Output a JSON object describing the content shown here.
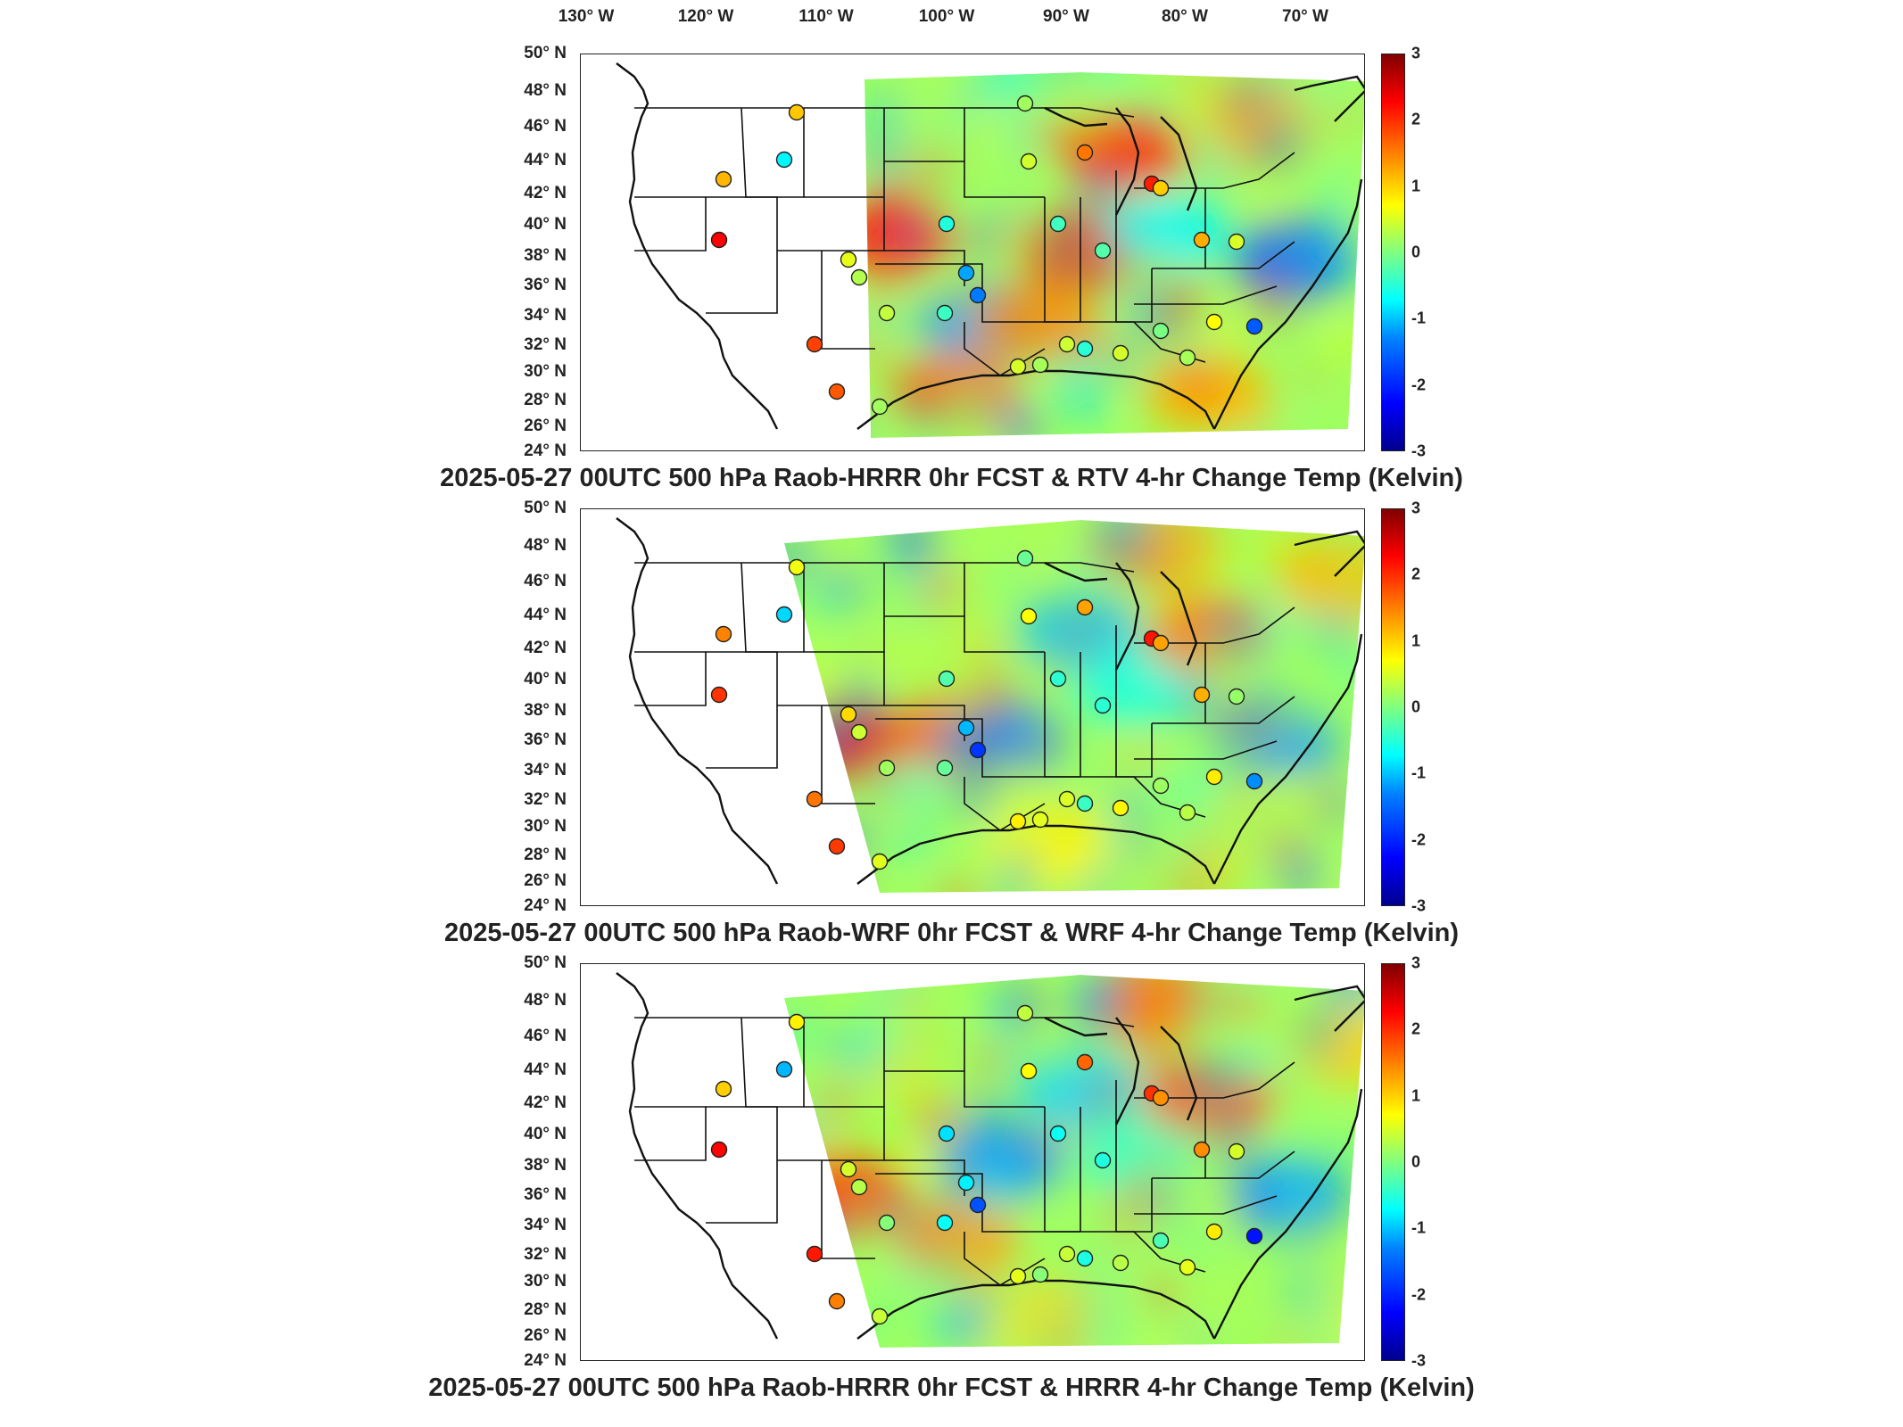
{
  "lon_labels": [
    "130° W",
    "120° W",
    "110° W",
    "100° W",
    "90° W",
    "80° W",
    "70° W"
  ],
  "lat_labels": [
    "50° N",
    "48° N",
    "46° N",
    "44° N",
    "42° N",
    "40° N",
    "38° N",
    "36° N",
    "34° N",
    "32° N",
    "30° N",
    "28° N",
    "26° N",
    "24° N"
  ],
  "colorbar": {
    "min": -3,
    "max": 3,
    "ticks": [
      "3",
      "2",
      "1",
      "0",
      "-1",
      "-2",
      "-3"
    ]
  },
  "colors": {
    "border": "#111111",
    "background": "#ffffff"
  },
  "panels": [
    {
      "title": "2025-05-27 00UTC 500 hPa Raob-HRRR 0hr FCST & RTV 4-hr Change Temp (Kelvin)"
    },
    {
      "title": "2025-05-27 00UTC 500 hPa Raob-WRF 0hr FCST & WRF 4-hr Change Temp (Kelvin)"
    },
    {
      "title": "2025-05-27 00UTC 500 hPa Raob-HRRR 0hr FCST & HRRR 4-hr Change Temp (Kelvin)"
    }
  ]
}
